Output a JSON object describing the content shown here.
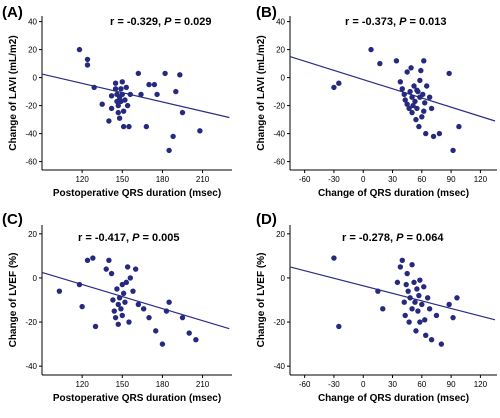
{
  "chart_data": [
    {
      "type": "scatter",
      "panel": "(A)",
      "stat_r": "r = -0.329, ",
      "stat_p_symbol": "P",
      "stat_p": " = 0.029",
      "xlabel": "Postoperative QRS duration (msec)",
      "ylabel": "Change of LAVI (mL/m2)",
      "xlim": [
        90,
        232
      ],
      "ylim": [
        -66,
        44
      ],
      "xticks": [
        120,
        150,
        180,
        210
      ],
      "yticks": [
        -60,
        -40,
        -20,
        0,
        20,
        40
      ],
      "x": [
        118,
        124,
        124,
        129,
        135,
        140,
        142,
        142,
        145,
        145,
        146,
        146,
        147,
        147,
        148,
        148,
        149,
        149,
        150,
        150,
        151,
        151,
        152,
        153,
        154,
        155,
        156,
        162,
        164,
        168,
        170,
        174,
        176,
        182,
        185,
        188,
        190,
        193,
        195,
        208
      ],
      "y": [
        20,
        13,
        9,
        -7,
        -19,
        -31,
        -13,
        -22,
        -4,
        -8,
        -12,
        -17,
        -20,
        -25,
        -14,
        -29,
        -8,
        -17,
        -3,
        -12,
        -24,
        -35,
        -16,
        -7,
        -20,
        -35,
        -12,
        3,
        -12,
        -35,
        -5,
        -5,
        -12,
        3,
        -52,
        -42,
        -10,
        2,
        -25,
        -38
      ],
      "fit": {
        "x": [
          90,
          230
        ],
        "y": [
          2.5,
          -28.5
        ]
      }
    },
    {
      "type": "scatter",
      "panel": "(B)",
      "stat_r": "r = -0.373, ",
      "stat_p_symbol": "P",
      "stat_p": " = 0.013",
      "xlabel": "Change of QRS duration (msec)",
      "ylabel": "Change of LAVI (mL/m2)",
      "xlim": [
        -75,
        137
      ],
      "ylim": [
        -66,
        44
      ],
      "xticks": [
        -60,
        -30,
        0,
        30,
        60,
        90,
        120
      ],
      "yticks": [
        -60,
        -40,
        -20,
        0,
        20,
        40
      ],
      "x": [
        -30,
        -25,
        8,
        17,
        34,
        38,
        40,
        42,
        43,
        45,
        45,
        47,
        48,
        49,
        50,
        50,
        51,
        52,
        53,
        54,
        55,
        55,
        56,
        57,
        58,
        58,
        59,
        60,
        61,
        62,
        62,
        63,
        64,
        65,
        68,
        70,
        72,
        78,
        88,
        92,
        98
      ],
      "y": [
        -7,
        -4,
        20,
        10,
        12,
        -3,
        -8,
        -12,
        -16,
        4,
        -19,
        -22,
        -10,
        7,
        -14,
        -25,
        -20,
        -6,
        -17,
        -30,
        -9,
        -22,
        -10,
        -35,
        -2,
        -14,
        5,
        -28,
        -12,
        12,
        -24,
        -18,
        -40,
        -6,
        -14,
        -22,
        -42,
        -40,
        3,
        -52,
        -35
      ],
      "fit": {
        "x": [
          -75,
          135
        ],
        "y": [
          15,
          -31
        ]
      }
    },
    {
      "type": "scatter",
      "panel": "(C)",
      "stat_r": "r = -0.417, ",
      "stat_p_symbol": "P",
      "stat_p": " = 0.005",
      "xlabel": "Postoperative QRS duration (msec)",
      "ylabel": "Change of LVEF (%)",
      "xlim": [
        90,
        232
      ],
      "ylim": [
        -44,
        24
      ],
      "xticks": [
        120,
        150,
        180,
        210
      ],
      "yticks": [
        -40,
        -20,
        0,
        20
      ],
      "x": [
        103,
        118,
        120,
        124,
        128,
        130,
        138,
        140,
        142,
        143,
        144,
        145,
        146,
        147,
        147,
        148,
        149,
        150,
        150,
        151,
        152,
        153,
        154,
        155,
        156,
        158,
        160,
        162,
        166,
        170,
        175,
        180,
        183,
        185,
        195,
        200,
        205
      ],
      "y": [
        -6,
        -3,
        -13,
        8,
        9,
        -22,
        4,
        8,
        2,
        -10,
        -15,
        -18,
        -5,
        -12,
        -21,
        -9,
        -14,
        -3,
        -17,
        -7,
        -11,
        -2,
        5,
        -20,
        0,
        -6,
        4,
        -12,
        -14,
        -18,
        -24,
        -30,
        -15,
        -11,
        -18,
        -25,
        -28
      ],
      "fit": {
        "x": [
          90,
          230
        ],
        "y": [
          2.5,
          -23
        ]
      }
    },
    {
      "type": "scatter",
      "panel": "(D)",
      "stat_r": "r = -0.278, ",
      "stat_p_symbol": "P",
      "stat_p": " = 0.064",
      "xlabel": "Change of QRS duration (msec)",
      "ylabel": "Change of LVEF (%)",
      "xlim": [
        -75,
        137
      ],
      "ylim": [
        -44,
        24
      ],
      "xticks": [
        -60,
        -30,
        0,
        30,
        60,
        90,
        120
      ],
      "yticks": [
        -40,
        -20,
        0,
        20
      ],
      "x": [
        -30,
        -25,
        15,
        20,
        35,
        38,
        40,
        42,
        43,
        44,
        45,
        46,
        47,
        48,
        50,
        50,
        52,
        53,
        54,
        55,
        56,
        57,
        58,
        58,
        60,
        62,
        63,
        64,
        66,
        68,
        70,
        75,
        80,
        88,
        92,
        96
      ],
      "y": [
        9,
        -22,
        -6,
        -14,
        -2,
        5,
        8,
        -11,
        -17,
        -3,
        2,
        -6,
        -20,
        -9,
        -14,
        6,
        -2,
        -11,
        -24,
        -5,
        -15,
        -8,
        -20,
        -1,
        -12,
        -4,
        -19,
        -26,
        -9,
        -14,
        -28,
        -17,
        -30,
        -12,
        -18,
        -9
      ],
      "fit": {
        "x": [
          -75,
          135
        ],
        "y": [
          5,
          -19
        ]
      }
    }
  ]
}
